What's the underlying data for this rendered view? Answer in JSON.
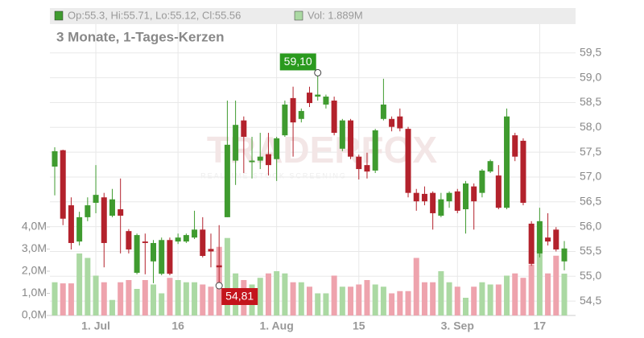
{
  "chart_data": {
    "type": "candlestick",
    "title": "3 Monate, 1-Tages-Kerzen",
    "legend_ohlc": "Op:55.3, Hi:55.71, Lo:55.12, Cl:55.56",
    "legend_volume": "Vol: 1.889M",
    "watermark": "TRADERFOX",
    "watermark_sub": "REALTIME STOCK SCREENING",
    "max_label": "59,10",
    "min_label": "54,81",
    "up_color": "#3f9b2f",
    "down_color": "#b3222c",
    "volume_up_color": "#abd9a3",
    "volume_down_color": "#eea3ad",
    "categories": [
      null,
      null,
      null,
      null,
      null,
      "1. Jul",
      null,
      null,
      null,
      null,
      null,
      null,
      null,
      null,
      null,
      "16",
      null,
      null,
      null,
      null,
      null,
      null,
      null,
      null,
      null,
      null,
      null,
      "1. Aug",
      null,
      null,
      null,
      null,
      null,
      null,
      null,
      null,
      null,
      "15",
      null,
      null,
      null,
      null,
      null,
      null,
      null,
      null,
      null,
      null,
      null,
      "3. Sep",
      null,
      null,
      null,
      null,
      null,
      null,
      null,
      null,
      null,
      "17",
      null,
      null,
      null
    ],
    "open": [
      57.21,
      57.54,
      56.43,
      55.7,
      56.19,
      56.48,
      56.59,
      56.22,
      56.35,
      55.91,
      55.07,
      55.7,
      55.3,
      55.05,
      55.73,
      55.7,
      55.7,
      55.78,
      55.94,
      55.55,
      55.22,
      56.19,
      57.33,
      58.14,
      57.3,
      57.33,
      57.46,
      57.36,
      57.84,
      58.59,
      58.17,
      58.7,
      58.62,
      58.46,
      58.54,
      57.57,
      58.14,
      57.41,
      57.24,
      57.13,
      58.17,
      58.17,
      58.22,
      57.97,
      56.68,
      56.66,
      56.68,
      56.22,
      56.51,
      56.71,
      56.35,
      56.81,
      56.68,
      57.11,
      57.03,
      56.38,
      57.84,
      57.73,
      56.06,
      55.46,
      55.78,
      55.94,
      55.3
    ],
    "high": [
      57.6,
      57.55,
      56.59,
      56.3,
      56.59,
      57.24,
      56.68,
      56.76,
      56.97,
      55.95,
      55.86,
      55.86,
      55.73,
      55.78,
      55.78,
      55.86,
      55.86,
      56.32,
      56.19,
      55.86,
      56.03,
      58.54,
      58.54,
      58.22,
      57.81,
      57.89,
      57.89,
      57.81,
      58.54,
      58.82,
      58.38,
      58.82,
      59.1,
      58.66,
      58.62,
      58.17,
      58.17,
      57.45,
      57.49,
      57.97,
      58.98,
      58.22,
      58.38,
      58.01,
      56.76,
      56.81,
      56.71,
      56.68,
      56.71,
      56.76,
      56.92,
      56.87,
      57.16,
      57.35,
      57.24,
      58.38,
      57.89,
      57.78,
      56.11,
      56.38,
      56.27,
      55.99,
      55.71
    ],
    "low": [
      56.63,
      56.03,
      55.54,
      55.62,
      56.11,
      56.27,
      55.18,
      56.19,
      55.46,
      55.46,
      55.04,
      55.04,
      54.86,
      55.02,
      55.02,
      55.65,
      55.67,
      55.75,
      55.38,
      55.18,
      54.81,
      56.19,
      56.84,
      57.08,
      56.97,
      57.16,
      57.03,
      56.92,
      57.81,
      57.41,
      58.1,
      58.41,
      58.54,
      58.38,
      57.84,
      57.52,
      57.36,
      56.95,
      56.97,
      57.08,
      58.14,
      57.92,
      57.92,
      56.59,
      56.32,
      56.43,
      55.94,
      56.19,
      56.38,
      56.27,
      55.86,
      55.94,
      56.59,
      57.08,
      56.35,
      56.35,
      57.32,
      56.43,
      55.21,
      55.38,
      55.62,
      55.5,
      55.12
    ],
    "close": [
      57.52,
      56.16,
      55.67,
      56.19,
      56.43,
      56.64,
      55.67,
      56.55,
      56.22,
      55.54,
      55.83,
      55.67,
      55.67,
      55.73,
      55.05,
      55.78,
      55.83,
      55.94,
      55.41,
      55.5,
      55.18,
      57.65,
      58.05,
      57.81,
      57.33,
      57.41,
      57.24,
      57.78,
      58.46,
      58.1,
      58.33,
      58.49,
      58.66,
      58.62,
      57.89,
      58.14,
      57.41,
      57.16,
      57.11,
      57.94,
      58.46,
      58.01,
      57.98,
      56.68,
      56.51,
      56.51,
      56.27,
      56.55,
      56.68,
      56.32,
      56.87,
      56.51,
      57.13,
      57.32,
      56.38,
      58.22,
      57.41,
      56.48,
      55.25,
      56.11,
      55.7,
      55.54,
      55.56
    ],
    "volume": [
      1.5,
      1.45,
      1.45,
      2.8,
      2.6,
      1.8,
      1.5,
      0.7,
      1.5,
      1.6,
      1.2,
      1.6,
      1.4,
      1.0,
      1.7,
      1.6,
      1.5,
      1.5,
      1.4,
      1.3,
      3.1,
      3.5,
      1.9,
      1.6,
      1.4,
      1.7,
      1.9,
      2.0,
      1.9,
      1.5,
      1.5,
      1.3,
      1.0,
      1.0,
      1.8,
      1.3,
      1.3,
      1.4,
      1.6,
      1.4,
      1.3,
      1.0,
      1.1,
      1.1,
      2.6,
      1.5,
      1.5,
      2.0,
      1.5,
      1.3,
      0.8,
      1.3,
      1.5,
      1.4,
      1.4,
      1.8,
      1.9,
      1.7,
      2.3,
      3.3,
      1.9,
      2.7,
      1.889
    ],
    "ylim": [
      54.21,
      60.08
    ],
    "yticks": [
      {
        "value": 54.5,
        "label": "54,5"
      },
      {
        "value": 55,
        "label": "55,0"
      },
      {
        "value": 55.5,
        "label": "55,5"
      },
      {
        "value": 56,
        "label": "56,0"
      },
      {
        "value": 56.5,
        "label": "56,5"
      },
      {
        "value": 57,
        "label": "57,0"
      },
      {
        "value": 57.5,
        "label": "57,5"
      },
      {
        "value": 58,
        "label": "58,0"
      },
      {
        "value": 58.5,
        "label": "58,5"
      },
      {
        "value": 59,
        "label": "59,0"
      },
      {
        "value": 59.5,
        "label": "59,5"
      }
    ],
    "y2lim": [
      0,
      13.16
    ],
    "y2ticks": [
      {
        "value": 0,
        "label": "0,0M"
      },
      {
        "value": 1,
        "label": "1,0M"
      },
      {
        "value": 2,
        "label": "2,0M"
      },
      {
        "value": 3,
        "label": "3,0M"
      },
      {
        "value": 4,
        "label": "4,0M"
      }
    ],
    "grid": true
  }
}
